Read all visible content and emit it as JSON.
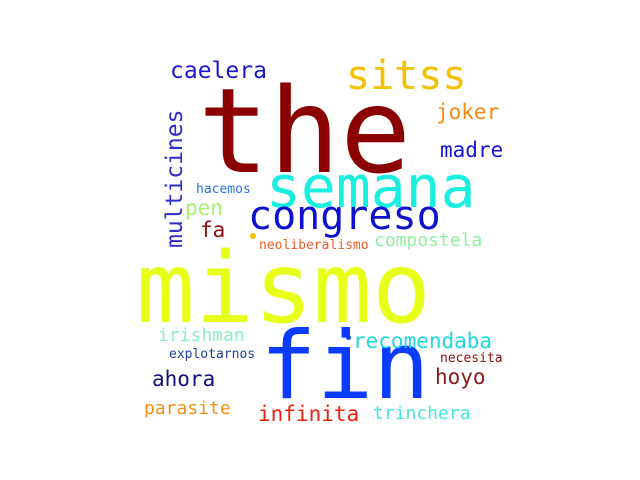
{
  "words": [
    {
      "text": "the",
      "color": "#8b0000"
    },
    {
      "text": "mismo",
      "color": "#e8ff1a"
    },
    {
      "text": "fin",
      "color": "#0a3cff"
    },
    {
      "text": "semana",
      "color": "#18efe0"
    },
    {
      "text": "congreso",
      "color": "#1010d0"
    },
    {
      "text": "sitss",
      "color": "#f5c000"
    },
    {
      "text": "caelera",
      "color": "#1a18c8"
    },
    {
      "text": "multicines",
      "color": "#2d2dc8"
    },
    {
      "text": "joker",
      "color": "#f08a10"
    },
    {
      "text": "madre",
      "color": "#1515d8"
    },
    {
      "text": "hacemos",
      "color": "#2b6ee8"
    },
    {
      "text": "pen",
      "color": "#a8f070"
    },
    {
      "text": "fa",
      "color": "#8b1010"
    },
    {
      "text": "neoliberalismo",
      "color": "#f05a28"
    },
    {
      "text": "compostela",
      "color": "#90f0a0"
    },
    {
      "text": "irishman",
      "color": "#88f0c0"
    },
    {
      "text": "recomendaba",
      "color": "#20d8e0"
    },
    {
      "text": "explotarnos",
      "color": "#2040a0"
    },
    {
      "text": "necesita",
      "color": "#8b1010"
    },
    {
      "text": "ahora",
      "color": "#10107a"
    },
    {
      "text": "hoyo",
      "color": "#8b1a1a"
    },
    {
      "text": "parasite",
      "color": "#f09018"
    },
    {
      "text": "infinita",
      "color": "#f02010"
    },
    {
      "text": "trinchera",
      "color": "#40e8e0"
    }
  ]
}
